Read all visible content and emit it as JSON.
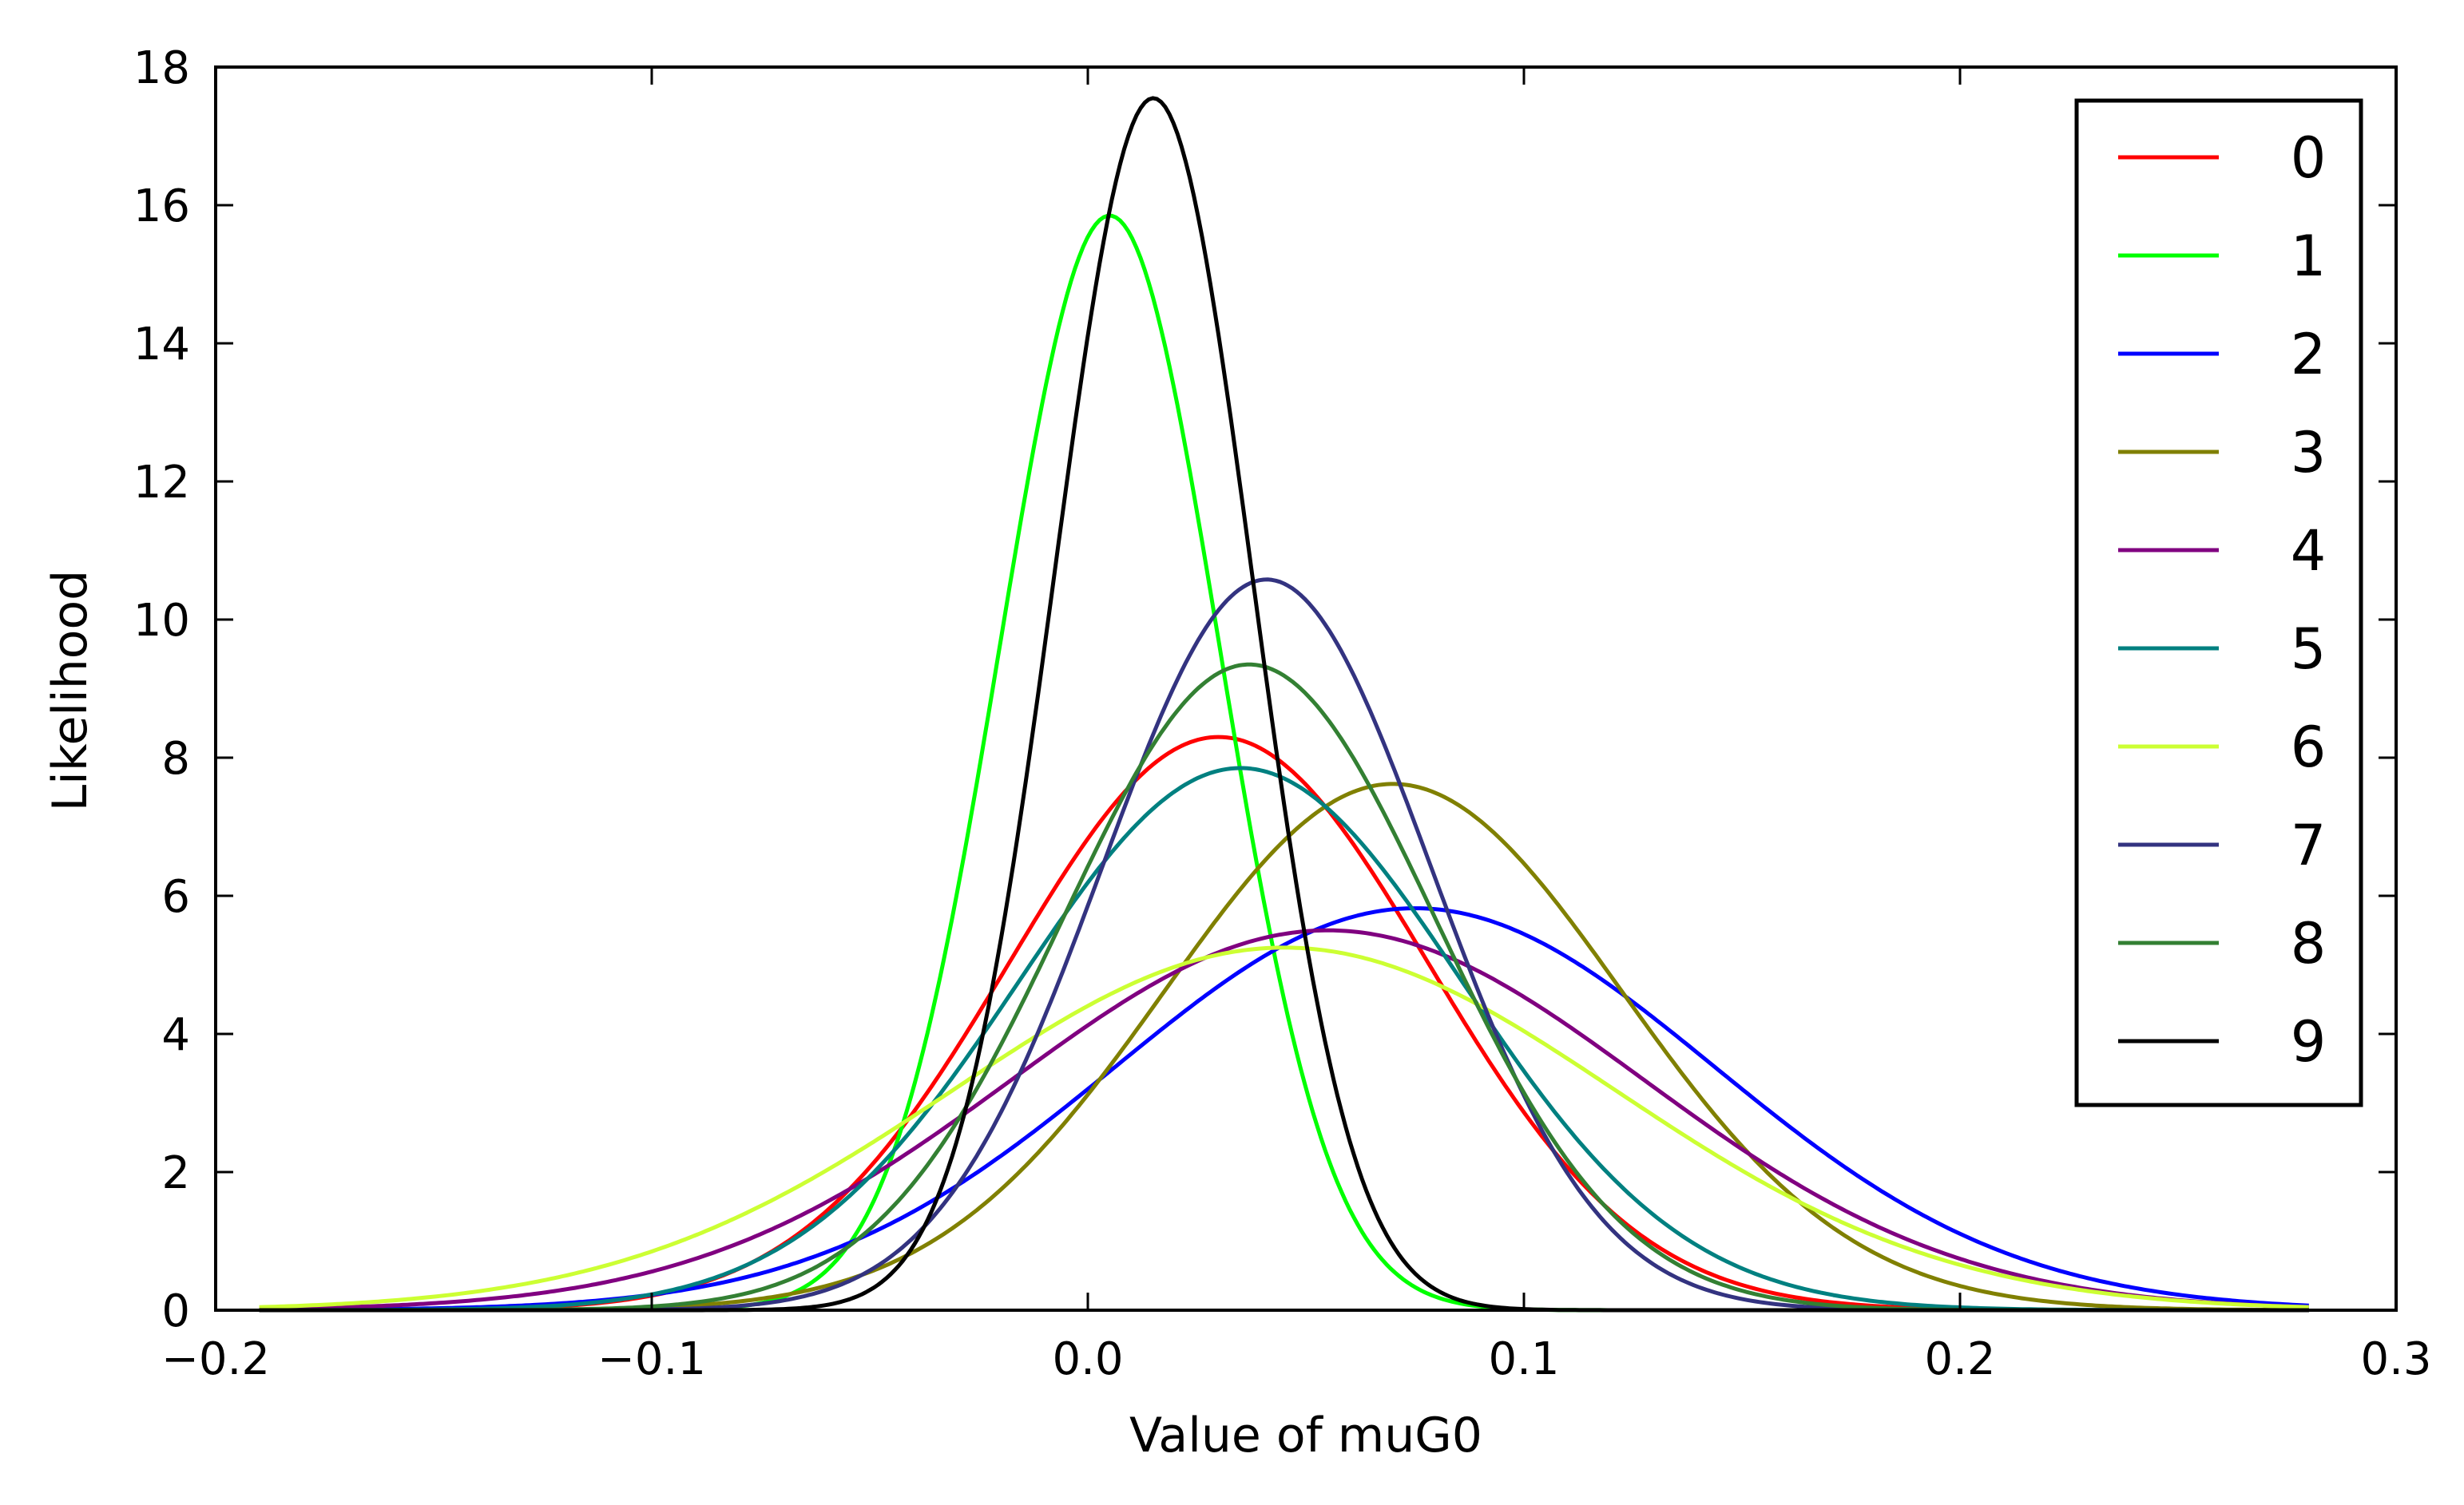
{
  "chart_data": {
    "type": "line",
    "title": "",
    "xlabel": "Value of muG0",
    "ylabel": "Likelihood",
    "xlim": [
      -0.2,
      0.3
    ],
    "ylim": [
      0,
      18
    ],
    "x_ticks": [
      -0.2,
      -0.1,
      0.0,
      0.1,
      0.2,
      0.3
    ],
    "x_tick_labels": [
      "−0.2",
      "−0.1",
      "0.0",
      "0.1",
      "0.2",
      "0.3"
    ],
    "y_ticks": [
      0,
      2,
      4,
      6,
      8,
      10,
      12,
      14,
      16,
      18
    ],
    "y_tick_labels": [
      "0",
      "2",
      "4",
      "6",
      "8",
      "10",
      "12",
      "14",
      "16",
      "18"
    ],
    "x_domain": [
      -0.19,
      0.28
    ],
    "grid": false,
    "legend_position": "top-right",
    "curve_form": "gaussian",
    "series": [
      {
        "name": "0",
        "color": "#ff0000",
        "mean": 0.03,
        "peak": 8.3,
        "std": 0.048
      },
      {
        "name": "1",
        "color": "#00ff00",
        "mean": 0.005,
        "peak": 15.85,
        "std": 0.0252
      },
      {
        "name": "2",
        "color": "#0000ff",
        "mean": 0.075,
        "peak": 5.82,
        "std": 0.0686
      },
      {
        "name": "3",
        "color": "#808000",
        "mean": 0.07,
        "peak": 7.62,
        "std": 0.0524
      },
      {
        "name": "4",
        "color": "#800080",
        "mean": 0.055,
        "peak": 5.5,
        "std": 0.0725
      },
      {
        "name": "5",
        "color": "#008080",
        "mean": 0.035,
        "peak": 7.85,
        "std": 0.0508
      },
      {
        "name": "6",
        "color": "#ccff33",
        "mean": 0.045,
        "peak": 5.25,
        "std": 0.076
      },
      {
        "name": "7",
        "color": "#333380",
        "mean": 0.041,
        "peak": 10.58,
        "std": 0.0377
      },
      {
        "name": "8",
        "color": "#338033",
        "mean": 0.037,
        "peak": 9.35,
        "std": 0.0427
      },
      {
        "name": "9",
        "color": "#000000",
        "mean": 0.015,
        "peak": 17.55,
        "std": 0.0227
      }
    ]
  }
}
